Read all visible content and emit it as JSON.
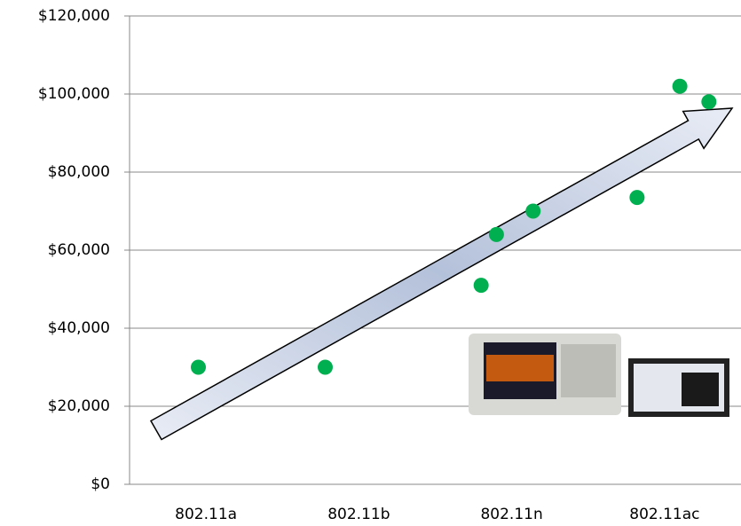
{
  "chart_data": {
    "type": "scatter",
    "x": [
      0.95,
      1.78,
      2.8,
      2.9,
      3.14,
      3.82,
      4.1,
      4.29
    ],
    "values": [
      30000,
      30000,
      51000,
      64000,
      70000,
      73500,
      102000,
      98000
    ],
    "color": "#00b050",
    "xlim": [
      0.5,
      4.5
    ],
    "xticks": [
      {
        "value": 1,
        "label": "802.11a"
      },
      {
        "value": 2,
        "label": "802.11b"
      },
      {
        "value": 3,
        "label": "802.11n"
      },
      {
        "value": 4,
        "label": "802.11ac"
      }
    ],
    "ylim": [
      0,
      120000
    ],
    "yticks": [
      {
        "value": 0,
        "label": "$0"
      },
      {
        "value": 20000,
        "label": "$20,000"
      },
      {
        "value": 40000,
        "label": "$40,000"
      },
      {
        "value": 60000,
        "label": "$60,000"
      },
      {
        "value": 80000,
        "label": "$80,000"
      },
      {
        "value": 100000,
        "label": "$100,000"
      },
      {
        "value": 120000,
        "label": "$120,000"
      }
    ],
    "grid": true
  }
}
